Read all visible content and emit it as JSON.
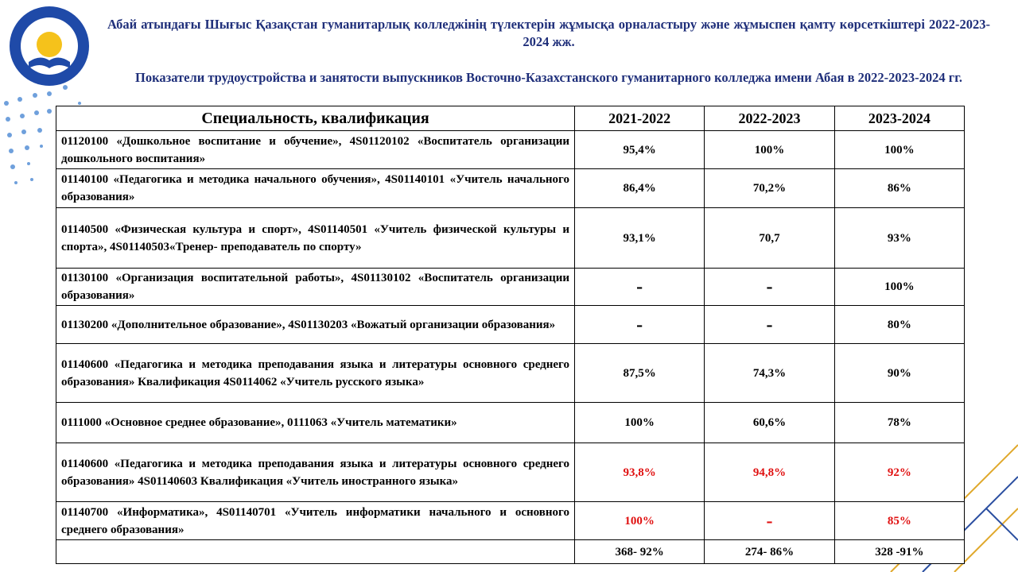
{
  "header": {
    "title_kz": "Абай атындағы Шығыс Қазақстан гуманитарлық колледжінің түлектерін жұмысқа орналастыру және жұмыспен қамту көрсеткіштері  2022-2023-2024 жж.",
    "title_ru": "Показатели трудоустройства  и занятости выпускников Восточно-Казахстанского гуманитарного колледжа имени Абая в 2022-2023-2024 гг."
  },
  "table": {
    "columns": [
      "Специальность, квалификация",
      "2021-2022",
      "2022-2023",
      "2023-2024"
    ],
    "rows": [
      {
        "color": "#000000",
        "cells": [
          "01120100 «Дошкольное воспитание и обучение», 4S01120102 «Воспитатель организации дошкольного воспитания»",
          "95,4%",
          "100%",
          "100%"
        ]
      },
      {
        "color": "#000000",
        "cells": [
          "01140100 «Педагогика и методика начального обучения», 4S01140101 «Учитель начального образования»",
          "86,4%",
          "70,2%",
          "86%"
        ]
      },
      {
        "color": "#000000",
        "cells": [
          "01140500 «Физическая культура и спорт», 4S01140501 «Учитель физической культуры и спорта», 4S01140503«Тренер- преподаватель по спорту»",
          "93,1%",
          "70,7",
          "93%"
        ]
      },
      {
        "color": "#000000",
        "cells": [
          "01130100 «Организация воспитательной работы», 4S01130102 «Воспитатель организации образования»",
          "-",
          "-",
          "100%"
        ]
      },
      {
        "color": "#000000",
        "cells": [
          "01130200 «Дополнительное образование», 4S01130203 «Вожатый организации образования»",
          "-",
          "-",
          "80%"
        ]
      },
      {
        "color": "#000000",
        "cells": [
          "01140600 «Педагогика и методика преподавания языка и литературы основного среднего образования» Квалификация 4S0114062 «Учитель русского языка»",
          "87,5%",
          "74,3%",
          "90%"
        ]
      },
      {
        "color": "#000000",
        "cells": [
          "0111000 «Основное среднее образование», 0111063 «Учитель математики»",
          "100%",
          "60,6%",
          "78%"
        ]
      },
      {
        "color": "#e01010",
        "cells": [
          "01140600 «Педагогика и методика преподавания языка и литературы основного среднего образования» 4S01140603 Квалификация «Учитель иностранного языка»",
          "93,8%",
          "94,8%",
          "92%"
        ]
      },
      {
        "color": "#e01010",
        "cells": [
          "01140700 «Информатика», 4S01140701 «Учитель информатики начального и основного среднего образования»",
          "100%",
          "-",
          "85%"
        ]
      }
    ],
    "totals": [
      "368- 92%",
      "274- 86%",
      "328 -91%"
    ]
  }
}
